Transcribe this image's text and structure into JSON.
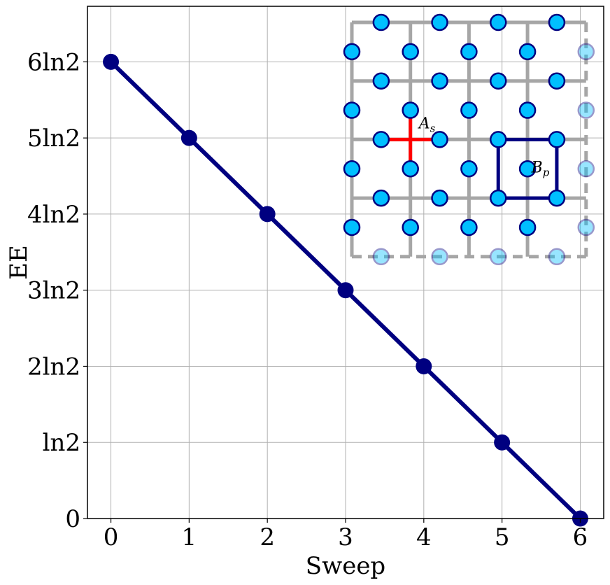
{
  "chart_data": {
    "type": "line",
    "x": [
      0,
      1,
      2,
      3,
      4,
      5,
      6
    ],
    "series": [
      {
        "values": [
          6,
          5,
          4,
          3,
          2,
          1,
          0
        ],
        "color": "#000080"
      }
    ],
    "xlabel": "Sweep",
    "ylabel": "EE",
    "xticks": [
      "0",
      "1",
      "2",
      "3",
      "4",
      "5",
      "6"
    ],
    "yticks": [
      "0",
      "ln2",
      "2ln2",
      "3ln2",
      "4ln2",
      "5ln2",
      "6ln2"
    ],
    "y_unit": "ln2",
    "xlim": [
      -0.3,
      6.3
    ],
    "ylim": [
      0,
      6.73
    ],
    "grid": true,
    "inset": {
      "description_labels": {
        "star_operator": "A",
        "star_sub": "s",
        "plaquette_operator": "B",
        "plaquette_sub": "p"
      },
      "lattice_color": "#a6a6a6",
      "qubit_fill": "#00bfff",
      "qubit_edge": "#000080",
      "star_color": "#ff0000",
      "plaquette_color": "#000080"
    }
  }
}
